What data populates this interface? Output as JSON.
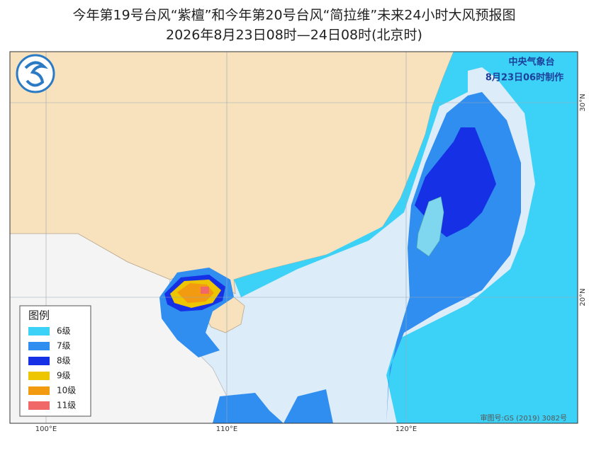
{
  "header": {
    "title_line1": "今年第19号台风“紫檀”和今年第20号台风“简拉维”未来24小时大风预报图",
    "title_line2": "2026年8月23日08时—24日08时(北京时)"
  },
  "stamp": {
    "agency": "中央气象台",
    "issued": "8月23日06时制作"
  },
  "legend": {
    "title": "图例",
    "items": [
      {
        "label": "6级",
        "color": "#3cd2f7"
      },
      {
        "label": "7级",
        "color": "#2f8ef0"
      },
      {
        "label": "8级",
        "color": "#1630e6"
      },
      {
        "label": "9级",
        "color": "#eec600"
      },
      {
        "label": "10级",
        "color": "#f29a10"
      },
      {
        "label": "11级",
        "color": "#f06868"
      }
    ]
  },
  "axes": {
    "longitude": [
      "100°E",
      "110°E",
      "120°E"
    ],
    "latitude": [
      "30°N",
      "20°N"
    ]
  },
  "footer": "审图号:GS (2019) 3082号"
}
